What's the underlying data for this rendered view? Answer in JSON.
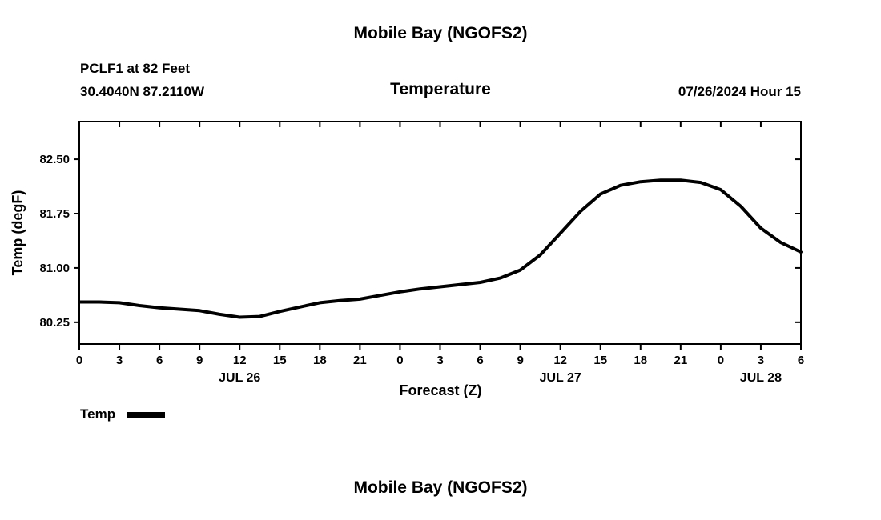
{
  "header": {
    "title": "Mobile Bay (NGOFS2)",
    "station_line1": "PCLF1 at 82 Feet",
    "station_line2": "30.4040N  87.2110W",
    "panel_title": "Temperature",
    "run_label": "07/26/2024 Hour 15"
  },
  "footer": {
    "title": "Mobile Bay (NGOFS2)"
  },
  "legend": {
    "label": "Temp"
  },
  "chart_data": {
    "type": "line",
    "title": "Temperature",
    "xlabel": "Forecast (Z)",
    "ylabel": "Temp (degF)",
    "xlim": [
      0,
      54
    ],
    "ylim": [
      79.95,
      83.02
    ],
    "yticks": [
      80.25,
      81.0,
      81.75,
      82.5
    ],
    "xticks": [
      0,
      3,
      6,
      9,
      12,
      15,
      18,
      21,
      24,
      27,
      30,
      33,
      36,
      39,
      42,
      45,
      48,
      51,
      54
    ],
    "xtick_labels": [
      "0",
      "3",
      "6",
      "9",
      "12",
      "15",
      "18",
      "21",
      "0",
      "3",
      "6",
      "9",
      "12",
      "15",
      "18",
      "21",
      "0",
      "3",
      "6"
    ],
    "date_labels": [
      {
        "label": "JUL 26",
        "x": 12
      },
      {
        "label": "JUL 27",
        "x": 36
      },
      {
        "label": "JUL 28",
        "x": 51
      }
    ],
    "grid": false,
    "legend_position": "bottom-left",
    "line_color": "#000000",
    "line_width": 4,
    "series": [
      {
        "name": "Temp",
        "x": [
          0,
          1.5,
          3,
          4.5,
          6,
          7.5,
          9,
          10.5,
          12,
          13.5,
          15,
          16.5,
          18,
          19.5,
          21,
          22.5,
          24,
          25.5,
          27,
          28.5,
          30,
          31.5,
          33,
          34.5,
          36,
          37.5,
          39,
          40.5,
          42,
          43.5,
          45,
          46.5,
          48,
          49.5,
          51,
          52.5,
          54
        ],
        "y": [
          80.53,
          80.53,
          80.52,
          80.48,
          80.45,
          80.43,
          80.41,
          80.36,
          80.32,
          80.33,
          80.4,
          80.46,
          80.52,
          80.55,
          80.57,
          80.62,
          80.67,
          80.71,
          80.74,
          80.77,
          80.8,
          80.86,
          80.97,
          81.18,
          81.48,
          81.78,
          82.02,
          82.14,
          82.19,
          82.21,
          82.21,
          82.18,
          82.08,
          81.85,
          81.55,
          81.35,
          81.22
        ]
      }
    ]
  }
}
